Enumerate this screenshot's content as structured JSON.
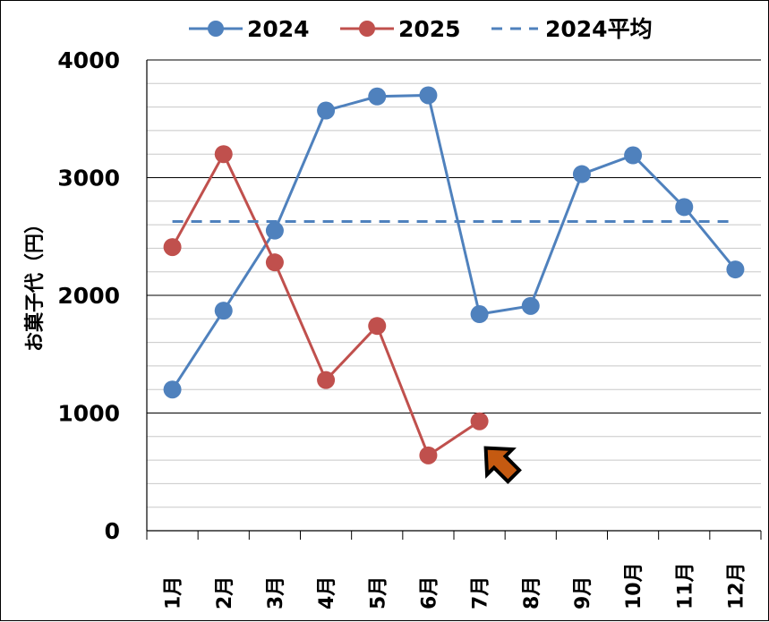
{
  "chart_data": {
    "type": "line",
    "categories": [
      "1月",
      "2月",
      "3月",
      "4月",
      "5月",
      "6月",
      "7月",
      "8月",
      "9月",
      "10月",
      "11月",
      "12月"
    ],
    "series": [
      {
        "name": "2024",
        "color": "#4f81bd",
        "values": [
          1200,
          1870,
          2550,
          3570,
          3690,
          3700,
          1840,
          1910,
          3030,
          3190,
          2750,
          2220
        ]
      },
      {
        "name": "2025",
        "color": "#c0504d",
        "values": [
          2410,
          3200,
          2280,
          1280,
          1740,
          640,
          930,
          null,
          null,
          null,
          null,
          null
        ]
      },
      {
        "name": "2024平均",
        "color": "#4f81bd",
        "style": "dashed",
        "values": [
          2627,
          2627,
          2627,
          2627,
          2627,
          2627,
          2627,
          2627,
          2627,
          2627,
          2627,
          2627
        ]
      }
    ],
    "ylabel": "お菓子代（円）",
    "xlabel": "",
    "ylim": [
      0,
      4000
    ],
    "yticks": [
      "0",
      "1000",
      "2000",
      "3000",
      "4000"
    ],
    "grid": true,
    "legend_position": "top",
    "annotation": {
      "type": "arrow",
      "icon": "arrow-up-left-icon",
      "color": "#c55a11",
      "points_to": "7月"
    }
  }
}
